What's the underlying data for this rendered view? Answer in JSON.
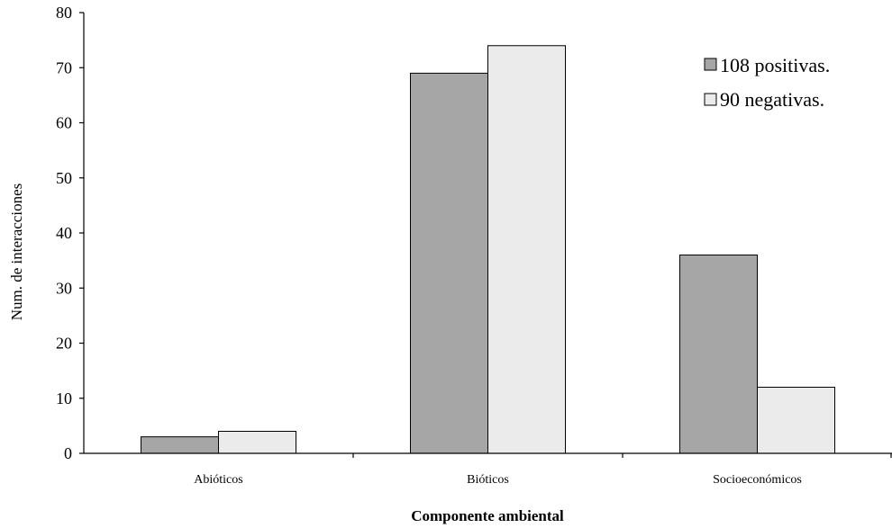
{
  "chart_data": {
    "type": "bar",
    "categories": [
      "Abióticos",
      "Bióticos",
      "Socioeconómicos"
    ],
    "series": [
      {
        "name": "108 positivas.",
        "values": [
          3,
          69,
          36
        ],
        "color": "#a6a6a6"
      },
      {
        "name": "90 negativas.",
        "values": [
          4,
          74,
          12
        ],
        "color": "#ebebeb"
      }
    ],
    "xlabel": "Componente ambiental",
    "ylabel": "Num. de interacciones",
    "ylim": [
      0,
      80
    ],
    "yticks": [
      0,
      10,
      20,
      30,
      40,
      50,
      60,
      70,
      80
    ],
    "grid": false,
    "legend_position": "top-right"
  }
}
